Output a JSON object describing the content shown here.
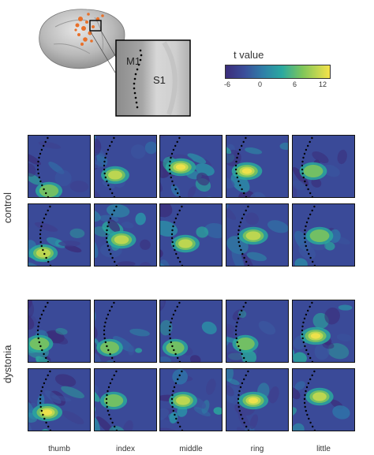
{
  "brain_labels": {
    "m1": "M1",
    "s1": "S1"
  },
  "colorbar": {
    "title": "t value",
    "ticks": [
      "-6",
      "0",
      "6",
      "12"
    ],
    "colors": [
      "#3b2d7a",
      "#3a4d9a",
      "#2f7fa8",
      "#2aa8a0",
      "#7fc65a",
      "#f6e34a"
    ]
  },
  "groups": [
    {
      "label": "control"
    },
    {
      "label": "dystonia"
    }
  ],
  "fingers": [
    "thumb",
    "index",
    "middle",
    "ring",
    "little"
  ],
  "accent_colors": {
    "activation_hot": "#f7e84a",
    "activation_warm": "#f5c53a",
    "brain_highlight": "#e8702a"
  }
}
